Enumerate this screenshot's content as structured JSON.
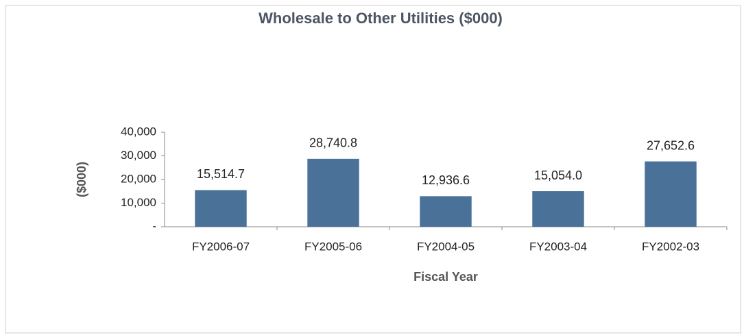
{
  "chart_data": {
    "type": "bar",
    "title": "Wholesale to Other Utilities ($000)",
    "categories": [
      "FY2006-07",
      "FY2005-06",
      "FY2004-05",
      "FY2003-04",
      "FY2002-03"
    ],
    "values": [
      15514.7,
      28740.8,
      12936.6,
      15054.0,
      27652.6
    ],
    "value_labels": [
      "15,514.7",
      "28,740.8",
      "12,936.6",
      "15,054.0",
      "27,652.6"
    ],
    "color": "#4a7299",
    "xlabel": "Fiscal Year",
    "ylabel": "($000)",
    "ylim": [
      0,
      40000
    ],
    "yticks": [
      {
        "value": 0,
        "label": "-"
      },
      {
        "value": 10000,
        "label": "10,000"
      },
      {
        "value": 20000,
        "label": "20,000"
      },
      {
        "value": 30000,
        "label": "30,000"
      },
      {
        "value": 40000,
        "label": "40,000"
      }
    ],
    "grid": false
  }
}
